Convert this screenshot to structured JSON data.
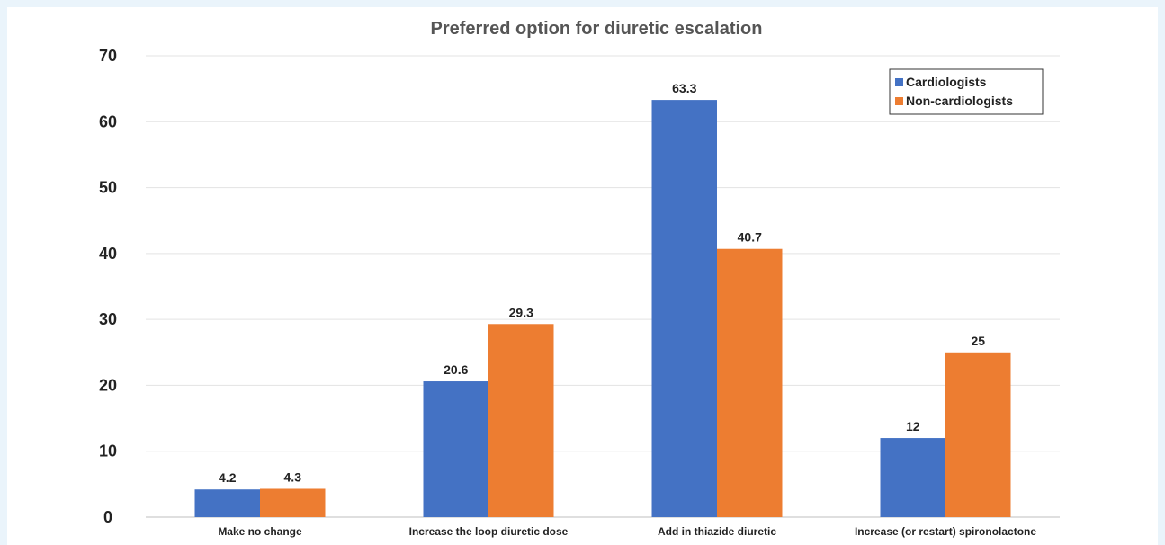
{
  "chart_data": {
    "type": "bar",
    "title": "Preferred option for diuretic escalation",
    "xlabel": "",
    "ylabel": "",
    "categories": [
      "Make no change",
      "Increase the loop diuretic dose",
      "Add in thiazide diuretic",
      "Increase (or restart) spironolactone"
    ],
    "series": [
      {
        "name": "Cardiologists",
        "values": [
          4.2,
          20.6,
          63.3,
          12
        ],
        "color": "#4472c4"
      },
      {
        "name": "Non-cardiologists",
        "values": [
          4.3,
          29.3,
          40.7,
          25
        ],
        "color": "#ed7d31"
      }
    ],
    "ylim": [
      0,
      70
    ],
    "yticks": [
      0,
      10,
      20,
      30,
      40,
      50,
      60,
      70
    ],
    "grid": true,
    "legend_position": "top-right",
    "data_labels": true
  }
}
